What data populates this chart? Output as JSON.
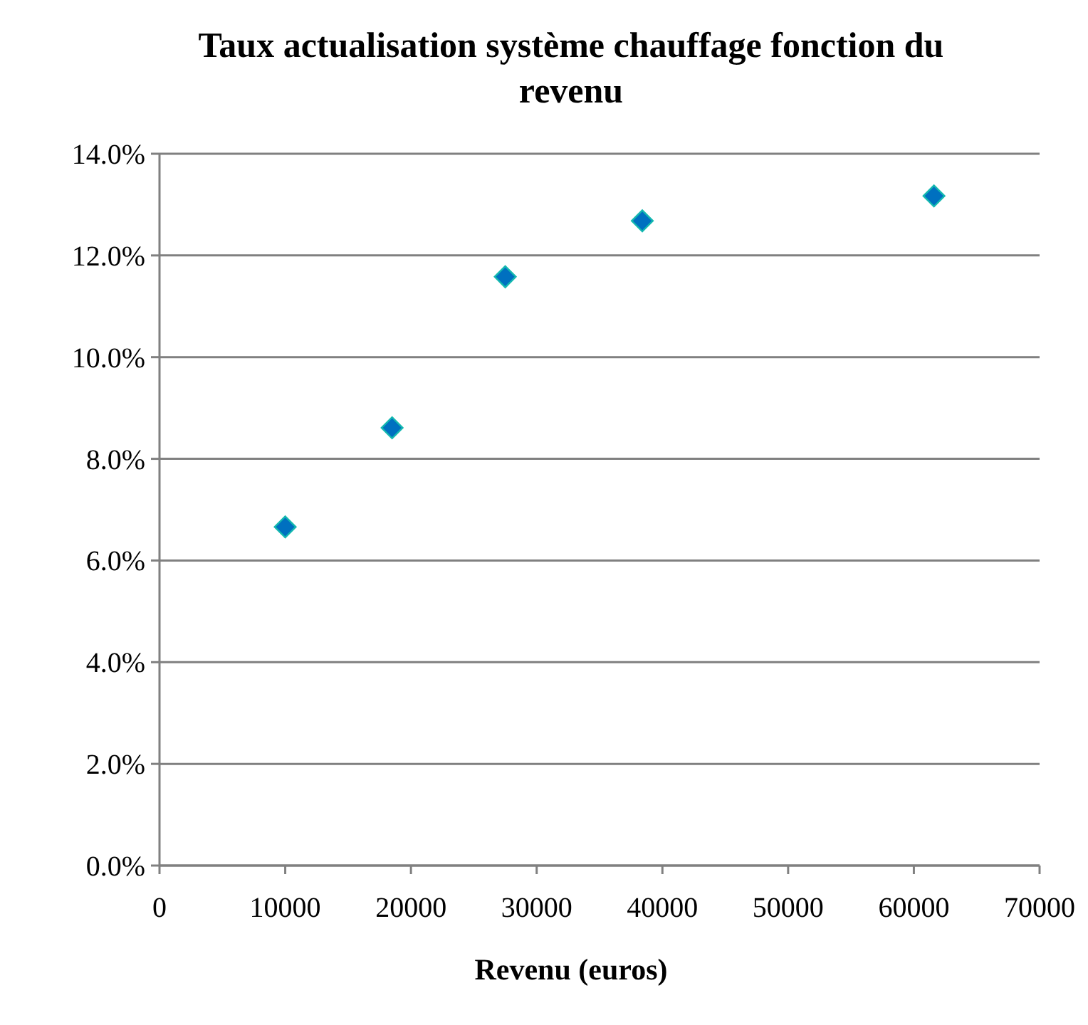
{
  "chart_data": {
    "type": "scatter",
    "title": "Taux actualisation système chauffage fonction du revenu",
    "xlabel": "Revenu (euros)",
    "x": [
      10000,
      18500,
      27500,
      38400,
      61600
    ],
    "values": [
      6.66,
      8.61,
      11.58,
      12.68,
      13.17
    ],
    "color": "#0070c0",
    "marker": "diamond",
    "grid": "y",
    "xlim": [
      0,
      70000
    ],
    "xticks": [
      0,
      10000,
      20000,
      30000,
      40000,
      50000,
      60000,
      70000
    ],
    "ylim": [
      0,
      14
    ],
    "yticks": [
      {
        "value": 0,
        "label": "0.0%"
      },
      {
        "value": 2,
        "label": "2.0%"
      },
      {
        "value": 4,
        "label": "4.0%"
      },
      {
        "value": 6,
        "label": "6.0%"
      },
      {
        "value": 8,
        "label": "8.0%"
      },
      {
        "value": 10,
        "label": "10.0%"
      },
      {
        "value": 12,
        "label": "12.0%"
      },
      {
        "value": 14,
        "label": "14.0%"
      }
    ]
  }
}
